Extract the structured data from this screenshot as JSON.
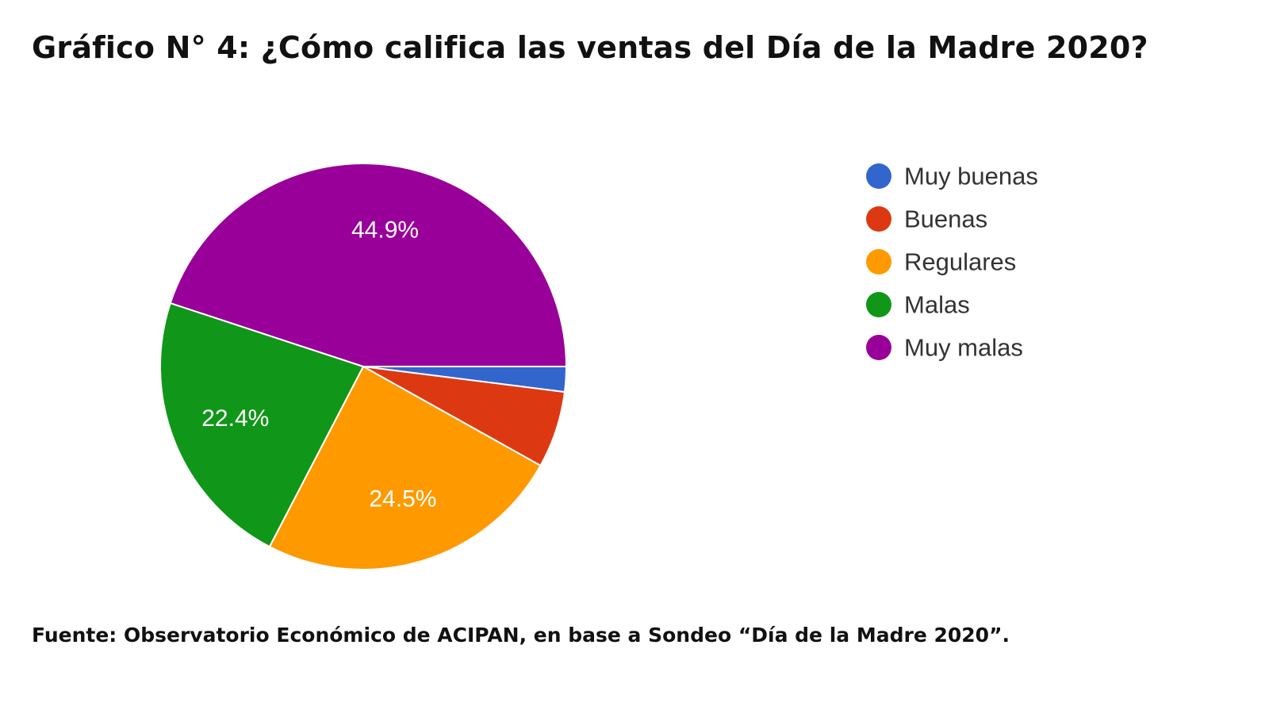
{
  "chart_data": {
    "type": "pie",
    "title": "Gráfico N° 4: ¿Cómo califica las ventas del Día de la Madre 2020?",
    "source": "Fuente: Observatorio Económico de ACIPAN, en base a Sondeo “Día de la Madre 2020”.",
    "legend_position": "right",
    "slices": [
      {
        "name": "Muy buenas",
        "value": 2.0,
        "color": "#3366cc",
        "label": ""
      },
      {
        "name": "Buenas",
        "value": 6.1,
        "color": "#dc3912",
        "label": ""
      },
      {
        "name": "Regulares",
        "value": 24.5,
        "color": "#ff9900",
        "label": "24.5%"
      },
      {
        "name": "Malas",
        "value": 22.4,
        "color": "#109618",
        "label": "22.4%"
      },
      {
        "name": "Muy malas",
        "value": 44.9,
        "color": "#990099",
        "label": "44.9%"
      }
    ]
  }
}
